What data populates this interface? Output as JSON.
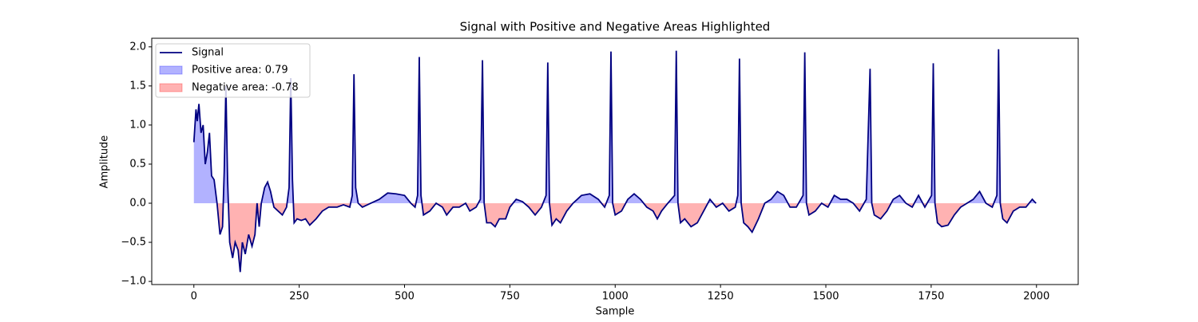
{
  "chart_data": {
    "type": "line",
    "title": "Signal with Positive and Negative Areas Highlighted",
    "x_label": "Sample",
    "y_label": "Amplitude",
    "xlim": [
      -100,
      2099
    ],
    "ylim": [
      -1.04,
      2.11
    ],
    "xticks": [
      0,
      250,
      500,
      750,
      1000,
      1250,
      1500,
      1750,
      2000
    ],
    "yticks": [
      {
        "value": -1.0,
        "label": "−1.0"
      },
      {
        "value": -0.5,
        "label": "−0.5"
      },
      {
        "value": 0.0,
        "label": "0.0"
      },
      0.5,
      {
        "value": 1.0,
        "label": "1.0"
      },
      1.5,
      {
        "value": 2.0,
        "label": "2.0"
      }
    ],
    "legend": "upper left",
    "x": [
      0,
      5,
      8,
      12,
      17,
      22,
      27,
      32,
      37,
      42,
      48,
      55,
      62,
      68,
      72,
      76,
      80,
      85,
      92,
      98,
      105,
      110,
      115,
      122,
      130,
      138,
      145,
      150,
      155,
      160,
      168,
      175,
      182,
      190,
      200,
      210,
      220,
      226,
      230,
      234,
      238,
      245,
      255,
      265,
      275,
      290,
      305,
      320,
      340,
      355,
      370,
      376,
      380,
      384,
      390,
      400,
      420,
      440,
      460,
      480,
      500,
      515,
      525,
      531,
      535,
      539,
      545,
      560,
      575,
      590,
      600,
      615,
      630,
      645,
      655,
      670,
      680,
      685,
      689,
      695,
      705,
      715,
      725,
      740,
      750,
      765,
      780,
      795,
      810,
      825,
      836,
      840,
      844,
      850,
      860,
      870,
      885,
      900,
      920,
      940,
      960,
      975,
      986,
      990,
      994,
      1000,
      1015,
      1030,
      1045,
      1060,
      1075,
      1090,
      1100,
      1110,
      1125,
      1141,
      1145,
      1149,
      1155,
      1165,
      1180,
      1195,
      1210,
      1225,
      1240,
      1255,
      1270,
      1285,
      1291,
      1295,
      1299,
      1305,
      1315,
      1325,
      1340,
      1355,
      1370,
      1385,
      1400,
      1415,
      1430,
      1446,
      1450,
      1454,
      1460,
      1475,
      1490,
      1505,
      1520,
      1535,
      1550,
      1565,
      1580,
      1596,
      1605,
      1609,
      1615,
      1630,
      1645,
      1660,
      1675,
      1690,
      1705,
      1720,
      1735,
      1751,
      1755,
      1759,
      1765,
      1775,
      1790,
      1805,
      1820,
      1835,
      1850,
      1865,
      1880,
      1895,
      1906,
      1910,
      1914,
      1920,
      1930,
      1945,
      1960,
      1975,
      1990,
      1995,
      1999
    ],
    "series": [
      {
        "name": "Signal",
        "color": "#000080",
        "values": [
          0.78,
          1.2,
          1.05,
          1.27,
          0.9,
          1.0,
          0.5,
          0.65,
          0.9,
          0.35,
          0.3,
          0.0,
          -0.4,
          -0.3,
          0.4,
          1.5,
          0.3,
          -0.5,
          -0.7,
          -0.5,
          -0.6,
          -0.88,
          -0.5,
          -0.65,
          -0.4,
          -0.55,
          -0.4,
          0.0,
          -0.3,
          0.0,
          0.2,
          0.27,
          0.15,
          -0.05,
          -0.1,
          -0.15,
          -0.05,
          0.2,
          1.6,
          0.3,
          -0.25,
          -0.2,
          -0.22,
          -0.2,
          -0.28,
          -0.2,
          -0.1,
          -0.05,
          -0.05,
          -0.02,
          -0.05,
          0.1,
          1.65,
          0.2,
          0.0,
          -0.05,
          0.0,
          0.05,
          0.13,
          0.12,
          0.1,
          0.0,
          -0.05,
          0.1,
          1.87,
          0.1,
          -0.15,
          -0.1,
          0.0,
          -0.05,
          -0.15,
          -0.05,
          -0.05,
          0.0,
          -0.1,
          -0.05,
          0.05,
          1.83,
          0.0,
          -0.25,
          -0.25,
          -0.3,
          -0.2,
          -0.2,
          -0.05,
          0.05,
          0.02,
          -0.05,
          -0.15,
          -0.05,
          0.1,
          1.8,
          0.0,
          -0.28,
          -0.2,
          -0.25,
          -0.1,
          0.0,
          0.1,
          0.12,
          0.05,
          -0.05,
          0.1,
          1.94,
          0.0,
          -0.15,
          -0.1,
          0.05,
          0.12,
          0.05,
          -0.05,
          -0.1,
          -0.2,
          -0.1,
          0.0,
          0.1,
          1.95,
          0.0,
          -0.25,
          -0.2,
          -0.3,
          -0.25,
          -0.1,
          0.05,
          -0.05,
          0.0,
          -0.1,
          -0.05,
          0.1,
          1.85,
          0.0,
          -0.25,
          -0.3,
          -0.37,
          -0.2,
          0.0,
          0.05,
          0.15,
          0.1,
          -0.05,
          -0.05,
          0.1,
          1.93,
          0.0,
          -0.15,
          -0.1,
          0.0,
          -0.05,
          0.1,
          0.05,
          0.05,
          0.0,
          -0.1,
          0.05,
          1.72,
          0.0,
          -0.15,
          -0.2,
          -0.1,
          0.05,
          0.1,
          0.0,
          -0.05,
          0.1,
          -0.05,
          0.1,
          1.79,
          0.0,
          -0.25,
          -0.3,
          -0.28,
          -0.15,
          -0.05,
          0.0,
          0.05,
          0.15,
          0.0,
          -0.05,
          0.1,
          1.97,
          0.0,
          -0.2,
          -0.25,
          -0.1,
          -0.05,
          -0.05,
          0.05,
          0.02,
          0.0
        ]
      }
    ],
    "fills": [
      {
        "name": "Positive area: 0.79",
        "color": "#0000ff"
      },
      {
        "name": "Negative area: -0.78",
        "color": "#ff0000"
      }
    ]
  }
}
